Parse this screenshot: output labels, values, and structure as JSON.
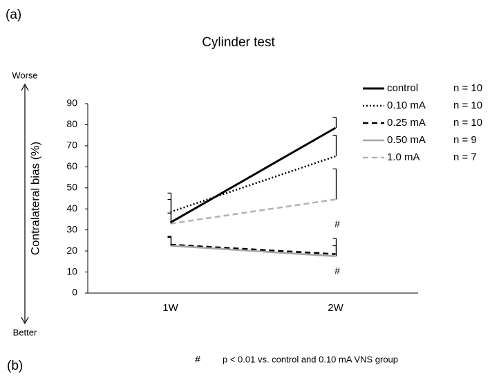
{
  "panel_labels": [
    "(a)",
    "(b)"
  ],
  "chart_data": {
    "type": "line",
    "title": "Cylinder test",
    "ylabel": "Contralateral bias (%)",
    "direction_labels": {
      "top": "Worse",
      "bottom": "Better"
    },
    "categories": [
      "1W",
      "2W"
    ],
    "ylim": [
      0,
      90
    ],
    "yticks": [
      0,
      10,
      20,
      30,
      40,
      50,
      60,
      70,
      80,
      90
    ],
    "series": [
      {
        "name": "control",
        "n": "n = 10",
        "color": "#000000",
        "dash": "solid",
        "values": [
          33.5,
          78.5
        ],
        "errors": [
          11,
          5
        ]
      },
      {
        "name": "0.10 mA",
        "n": "n = 10",
        "color": "#000000",
        "dash": "dotted",
        "values": [
          38.5,
          65
        ],
        "errors": [
          9,
          10
        ]
      },
      {
        "name": "0.25 mA",
        "n": "n = 10",
        "color": "#000000",
        "dash": "dashed",
        "values": [
          23,
          18.5
        ],
        "errors": [
          4,
          4
        ]
      },
      {
        "name": "0.50 mA",
        "n": "n = 9",
        "color": "#a6a6a6",
        "dash": "solid",
        "values": [
          22.5,
          17.5
        ],
        "errors": [
          4,
          8.5
        ]
      },
      {
        "name": "1.0 mA",
        "n": "n = 7",
        "color": "#b4b4b4",
        "dash": "dashed",
        "values": [
          33,
          44.5
        ],
        "errors": [
          5,
          14.5
        ]
      }
    ],
    "annotations": [
      "#",
      "#"
    ],
    "footnote": {
      "symbol": "#",
      "text": "p < 0.01 vs. control and 0.10 mA VNS group"
    }
  }
}
